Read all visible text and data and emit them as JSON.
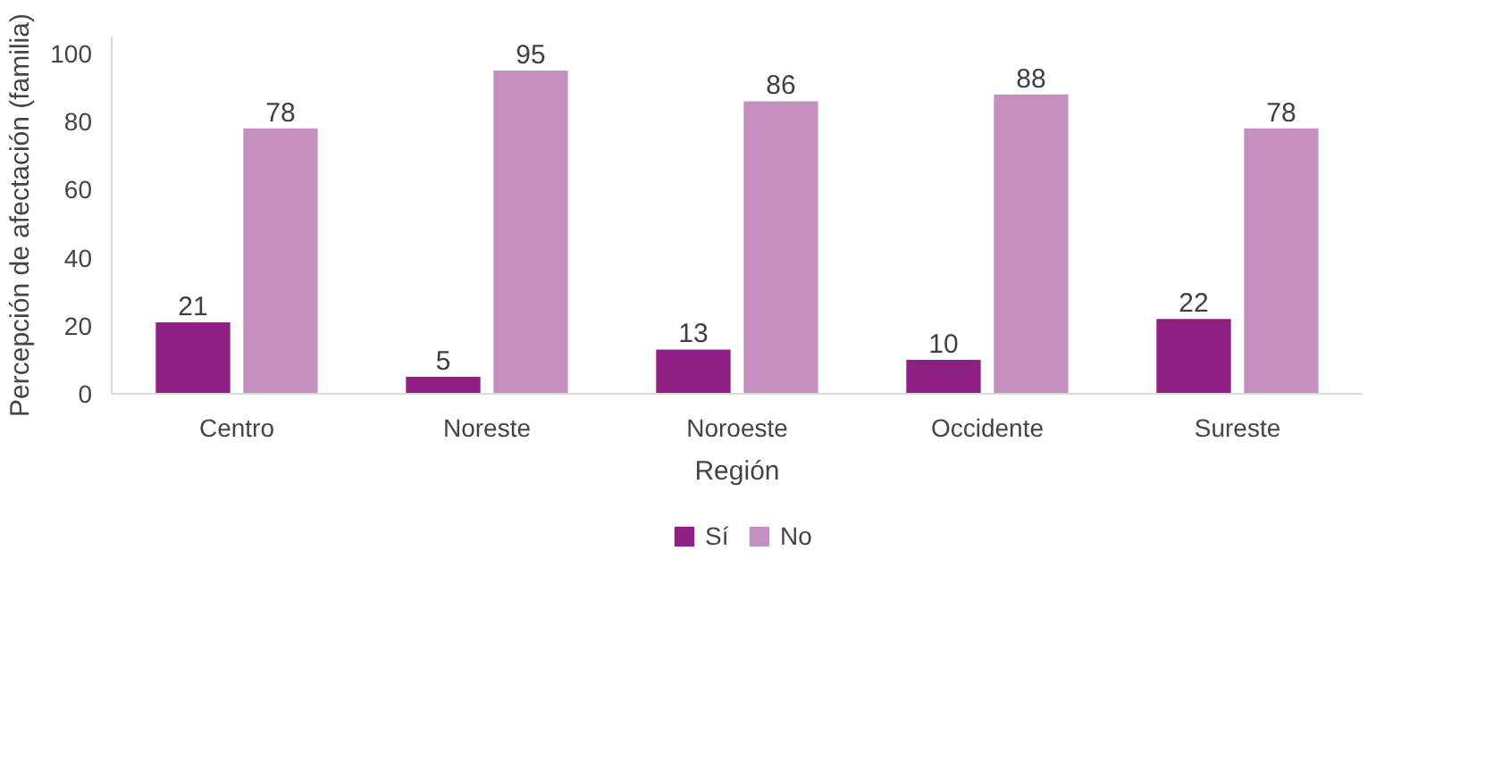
{
  "chart_data": {
    "type": "bar",
    "xlabel": "Región",
    "ylabel": "Percepción de afectación (familia)",
    "categories": [
      "Centro",
      "Noreste",
      "Noroeste",
      "Occidente",
      "Sureste"
    ],
    "series": [
      {
        "name": "Sí",
        "color": "#8e1f83",
        "values": [
          21,
          5,
          13,
          10,
          22
        ]
      },
      {
        "name": "No",
        "color": "#c490c0",
        "values": [
          78,
          95,
          86,
          88,
          78
        ]
      }
    ],
    "ylim": [
      0,
      105
    ],
    "yticks": [
      0,
      20,
      40,
      60,
      80,
      100
    ],
    "grid": false,
    "legend": "bottom",
    "data_labels": true
  }
}
